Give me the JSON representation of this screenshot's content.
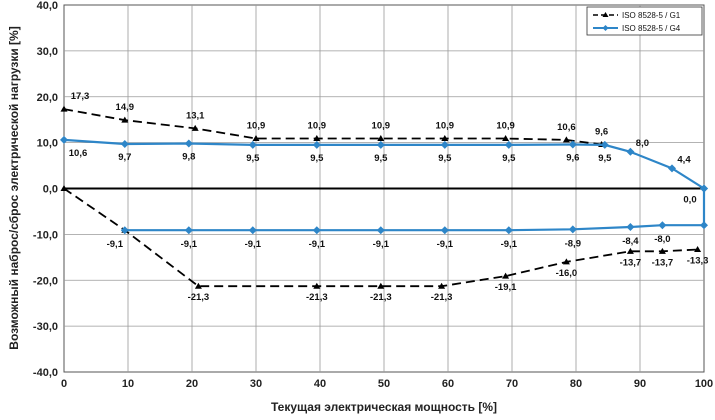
{
  "chart_data": {
    "type": "line",
    "xlabel": "Текущая электрическая мощность [%]",
    "ylabel": "Возможный наброс/сброс электрической нагрузки [%]",
    "xlim": [
      0,
      100
    ],
    "ylim": [
      -40,
      40
    ],
    "x_ticks": [
      "0",
      "10",
      "20",
      "30",
      "40",
      "50",
      "60",
      "70",
      "80",
      "90",
      "100"
    ],
    "y_ticks": [
      "40,0",
      "30,0",
      "20,0",
      "10,0",
      "0,0",
      "-10,0",
      "-20,0",
      "-30,0",
      "-40,0"
    ],
    "grid": true,
    "legend_position": "top-right",
    "series": [
      {
        "name": "ISO 8528-5 / G1",
        "style": "dashed",
        "marker": "triangle",
        "color": "#000000",
        "upper": {
          "x": [
            0,
            9.5,
            20.5,
            30,
            39.5,
            49.5,
            59.5,
            69,
            78.5,
            84
          ],
          "y": [
            17.3,
            14.9,
            13.1,
            10.9,
            10.9,
            10.9,
            10.9,
            10.9,
            10.6,
            9.6
          ],
          "labels": [
            "17,3",
            "14,9",
            "13,1",
            "10,9",
            "10,9",
            "10,9",
            "10,9",
            "10,9",
            "10,6",
            "9,6"
          ]
        },
        "lower": {
          "x": [
            0,
            9.5,
            21,
            39.5,
            49.5,
            59,
            69,
            78.5,
            88.5,
            93.5,
            99
          ],
          "y": [
            0,
            -9.1,
            -21.3,
            -21.3,
            -21.3,
            -21.3,
            -19.1,
            -16.0,
            -13.7,
            -13.7,
            -13.3
          ],
          "labels": [
            "",
            "",
            "-21,3",
            "-21,3",
            "-21,3",
            "-21,3",
            "-19,1",
            "-16,0",
            "-13,7",
            "-13,7",
            "-13,3"
          ]
        }
      },
      {
        "name": "ISO 8528-5 / G4",
        "style": "solid",
        "marker": "diamond",
        "color": "#2e86c8",
        "upper": {
          "x": [
            0,
            9.5,
            19.5,
            29.5,
            39.5,
            49.5,
            59.5,
            69.5,
            79.5,
            84.5,
            88.5,
            95,
            100
          ],
          "y": [
            10.6,
            9.7,
            9.8,
            9.5,
            9.5,
            9.5,
            9.5,
            9.5,
            9.6,
            9.5,
            8.0,
            4.4,
            0.0
          ],
          "labels": [
            "10,6",
            "9,7",
            "9,8",
            "9,5",
            "9,5",
            "9,5",
            "9,5",
            "9,5",
            "9,6",
            "9,5",
            "8,0",
            "4,4",
            "0,0"
          ]
        },
        "lower": {
          "x": [
            9.5,
            19.5,
            29.5,
            39.5,
            49.5,
            59.5,
            69.5,
            79.5,
            88.5,
            93.5,
            100,
            100
          ],
          "y": [
            -9.1,
            -9.1,
            -9.1,
            -9.1,
            -9.1,
            -9.1,
            -9.1,
            -8.9,
            -8.4,
            -8.0,
            -8.0,
            0.0
          ],
          "labels": [
            "-9,1",
            "-9,1",
            "-9,1",
            "-9,1",
            "-9,1",
            "-9,1",
            "-9,1",
            "-8,9",
            "-8,4",
            "-8,0",
            "",
            ""
          ]
        }
      }
    ]
  }
}
